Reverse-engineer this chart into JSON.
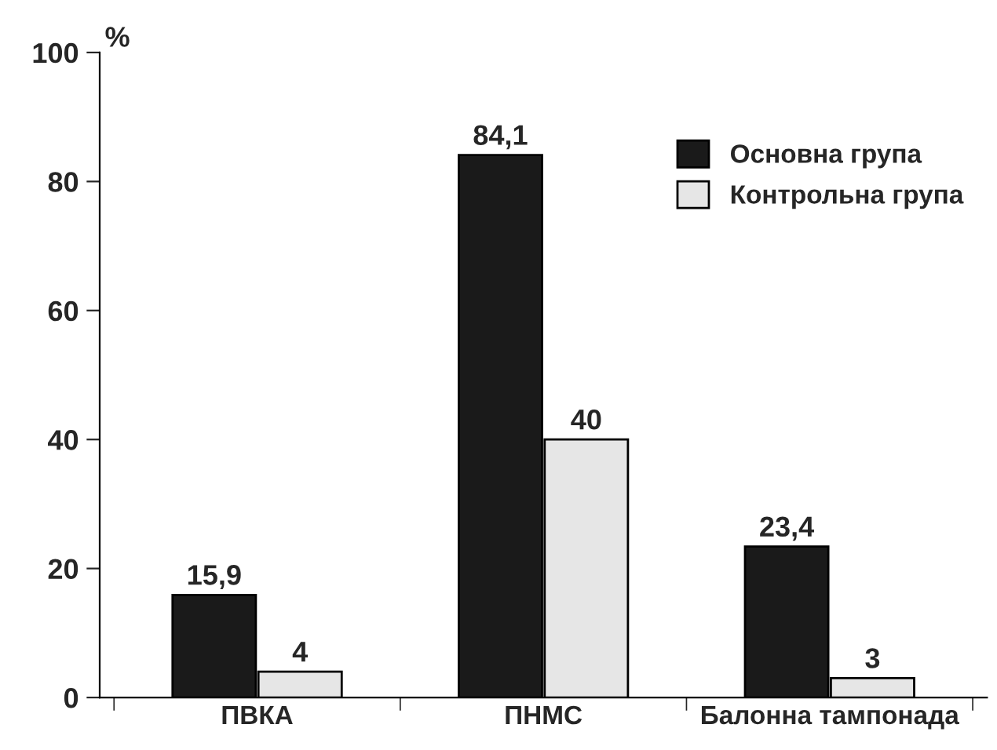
{
  "chart_data": {
    "type": "bar",
    "ylabel": "%",
    "categories": [
      "ПВКА",
      "ПНМС",
      "Балонна тампонада"
    ],
    "series": [
      {
        "name": "Основна група",
        "color": "#1a1a1a",
        "values": [
          15.9,
          84.1,
          23.4
        ],
        "value_labels": [
          "15,9",
          "84,1",
          "23,4"
        ]
      },
      {
        "name": "Контрольна група",
        "color": "#e6e6e6",
        "values": [
          4,
          40,
          3
        ],
        "value_labels": [
          "4",
          "40",
          "3"
        ]
      }
    ],
    "ylim": [
      0,
      100
    ],
    "yticks": [
      0,
      20,
      40,
      60,
      80,
      100
    ],
    "grid": false,
    "legend": "top right"
  }
}
